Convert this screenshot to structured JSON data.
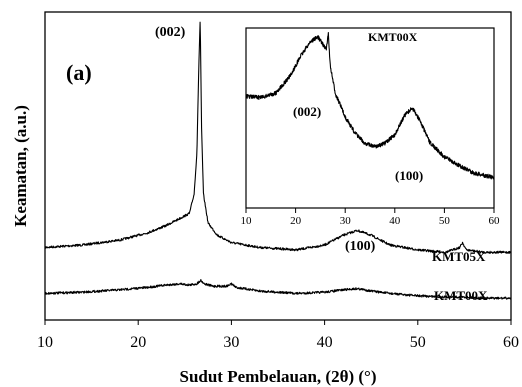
{
  "chart_data": [
    {
      "type": "line",
      "panel_label": "(a)",
      "xlabel": "Sudut Pembelauan, (2θ) (°)",
      "ylabel": "Keamatan, (a.u.)",
      "xlim": [
        10,
        60
      ],
      "x_ticks": [
        "10",
        "20",
        "30",
        "40",
        "50",
        "60"
      ],
      "y_ticks_labeled": false,
      "grid": false,
      "annotations": [
        "(002)",
        "(100)"
      ],
      "series": [
        {
          "name": "KMT05X",
          "color": "#000000",
          "x": [
            10,
            14,
            18,
            21,
            23,
            24.5,
            25.5,
            26,
            26.3,
            26.5,
            26.65,
            26.8,
            27,
            27.5,
            28.5,
            30,
            33,
            37,
            40,
            42,
            43.5,
            45,
            47,
            50,
            53,
            54.5,
            54.8,
            55.2,
            57,
            60
          ],
          "y": [
            0.06,
            0.07,
            0.09,
            0.12,
            0.15,
            0.18,
            0.2,
            0.28,
            0.45,
            0.8,
            1.0,
            0.55,
            0.28,
            0.16,
            0.11,
            0.08,
            0.06,
            0.05,
            0.07,
            0.11,
            0.13,
            0.11,
            0.07,
            0.05,
            0.04,
            0.06,
            0.08,
            0.05,
            0.04,
            0.04
          ]
        },
        {
          "name": "KMT00X",
          "color": "#000000",
          "x": [
            10,
            14,
            18,
            21,
            23,
            24.5,
            25.5,
            26.3,
            26.7,
            27.1,
            28,
            29.5,
            30,
            30.5,
            33,
            37,
            40,
            42,
            43.5,
            45,
            47,
            50,
            53,
            55,
            57,
            60
          ],
          "y": [
            -0.07,
            -0.06,
            -0.04,
            -0.02,
            0.0,
            0.01,
            0.0,
            0.01,
            0.04,
            0.01,
            -0.01,
            -0.01,
            0.01,
            -0.02,
            -0.05,
            -0.07,
            -0.06,
            -0.04,
            -0.03,
            -0.05,
            -0.07,
            -0.09,
            -0.1,
            -0.1,
            -0.11,
            -0.11
          ]
        }
      ]
    },
    {
      "type": "line",
      "panel": "inset",
      "xlim": [
        10,
        60
      ],
      "x_ticks": [
        "10",
        "20",
        "30",
        "40",
        "50",
        "60"
      ],
      "y_ticks_labeled": false,
      "annotations": [
        "(002)",
        "(100)"
      ],
      "series": [
        {
          "name": "KMT00X",
          "color": "#000000",
          "x": [
            10,
            13,
            16,
            19,
            21,
            23,
            24.5,
            25.5,
            26.2,
            26.6,
            27,
            28,
            30,
            32,
            34,
            36,
            38,
            40,
            42,
            43.5,
            45,
            47,
            50,
            53,
            56,
            60
          ],
          "y": [
            0.58,
            0.57,
            0.6,
            0.72,
            0.85,
            0.95,
            0.98,
            0.93,
            0.9,
            1.0,
            0.78,
            0.6,
            0.44,
            0.33,
            0.26,
            0.24,
            0.26,
            0.32,
            0.45,
            0.5,
            0.42,
            0.27,
            0.17,
            0.11,
            0.06,
            0.03
          ]
        }
      ]
    }
  ]
}
